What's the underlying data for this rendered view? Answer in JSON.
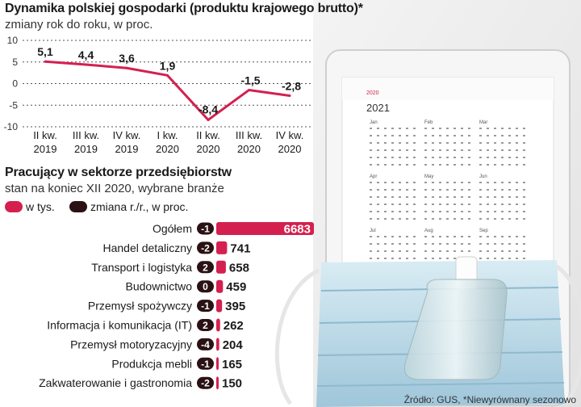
{
  "line_chart": {
    "title": "Dynamika polskiej gospodarki (produktu krajowego brutto)*",
    "subtitle": "zmiany rok do roku, w  proc.",
    "chart_data": {
      "type": "line",
      "categories": [
        [
          "II kw.",
          "2019"
        ],
        [
          "III kw.",
          "2019"
        ],
        [
          "IV kw.",
          "2019"
        ],
        [
          "I kw.",
          "2020"
        ],
        [
          "II kw.",
          "2020"
        ],
        [
          "III kw.",
          "2020"
        ],
        [
          "IV kw.",
          "2020"
        ]
      ],
      "values": [
        5.1,
        4.4,
        3.6,
        1.9,
        -8.4,
        -1.5,
        -2.8
      ],
      "value_labels": [
        "5,1",
        "4,4",
        "3,6",
        "1,9",
        "-8,4",
        "-1,5",
        "-2,8"
      ],
      "yticks": [
        "10",
        "5",
        "0",
        "-5",
        "-10"
      ],
      "ytick_values": [
        10,
        5,
        0,
        -5,
        -10
      ],
      "ylim": [
        -10,
        10
      ],
      "grid": true,
      "line_color": "#d4204f"
    }
  },
  "bar_chart": {
    "title": "Pracujący w sektorze przedsiębiorstw",
    "subtitle": "stan na koniec XII 2020, wybrane branże",
    "legend": [
      {
        "label": "w tys.",
        "color": "#d4204f"
      },
      {
        "label": "zmiana r./r., w proc.",
        "color": "#2a1214"
      }
    ],
    "chart_data": {
      "type": "bar",
      "categories": [
        "Ogółem",
        "Handel detaliczny",
        "Transport i logistyka",
        "Budownictwo",
        "Przemysł spożywczy",
        "Informacja i komunikacja (IT)",
        "Przemysł motoryzacyjny",
        "Produkcja mebli",
        "Zakwaterowanie i gastronomia"
      ],
      "values": [
        6683,
        741,
        658,
        459,
        395,
        262,
        204,
        165,
        150
      ],
      "change": [
        "-1",
        "-2",
        "2",
        "0",
        "-1",
        "2",
        "-4",
        "-1",
        "-2"
      ],
      "bar_color": "#d4204f",
      "badge_color": "#2a1214"
    }
  },
  "source": "Źródło: GUS, *Niewyrównany sezonowo"
}
